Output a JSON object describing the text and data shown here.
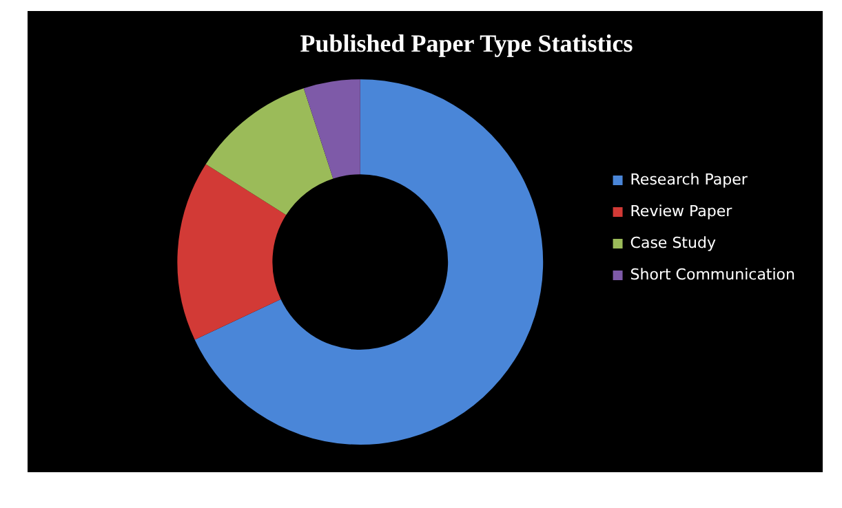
{
  "chart_data": {
    "type": "donut",
    "title": "Published Paper Type Statistics",
    "categories": [
      "Research Paper",
      "Review Paper",
      "Case Study",
      "Short Communication"
    ],
    "values": [
      68,
      16,
      11,
      5
    ],
    "colors": [
      "#4a86d8",
      "#d23a36",
      "#9bbb59",
      "#7e5aa8"
    ],
    "legend": "right"
  }
}
